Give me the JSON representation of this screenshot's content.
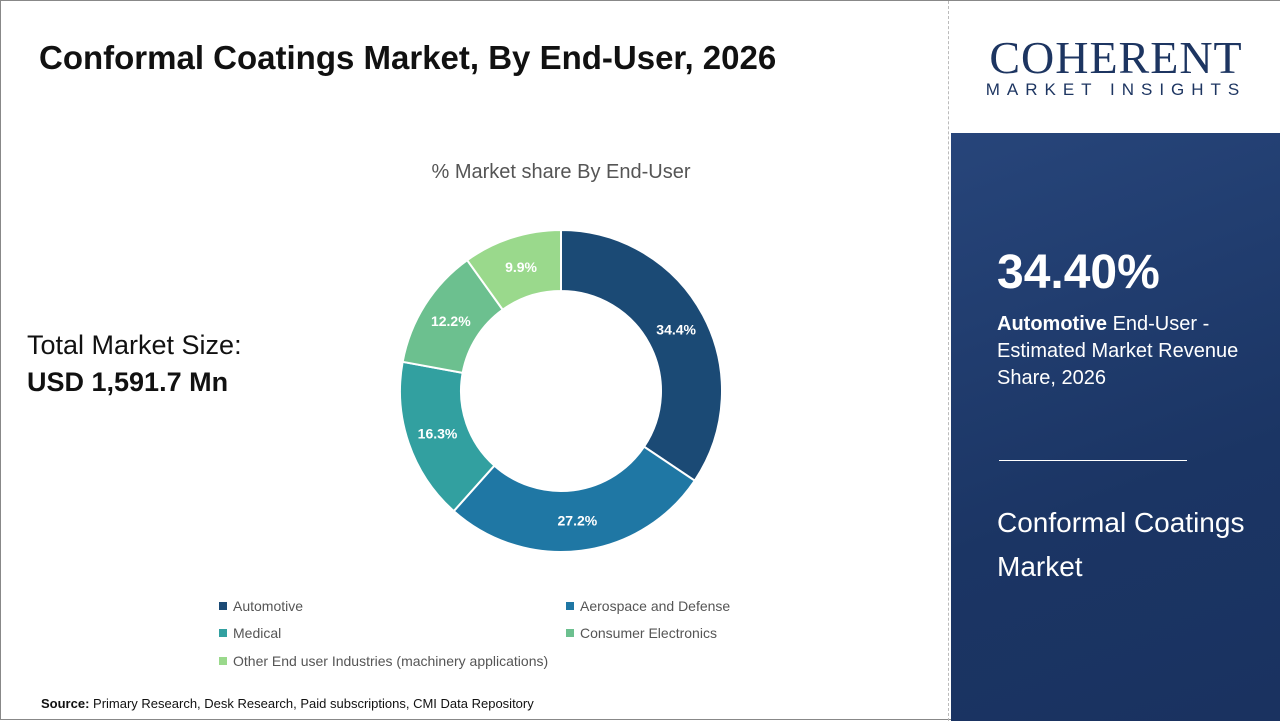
{
  "title": "Conformal Coatings Market, By End-User, 2026",
  "total": {
    "label": "Total Market Size:",
    "value": "USD 1,591.7 Mn"
  },
  "source": {
    "label": "Source:",
    "text": "Primary Research, Desk Research, Paid subscriptions, CMI Data Repository"
  },
  "logo": {
    "main": "COHERENT",
    "sub": "MARKET INSIGHTS"
  },
  "panel": {
    "pct": "34.40%",
    "highlight": "Automotive",
    "desc": "End-User - Estimated Market Revenue Share, 2026",
    "market": "Conformal Coatings Market"
  },
  "chart_data": {
    "type": "pie",
    "donut": true,
    "title": "% Market share By End-User",
    "categories": [
      "Automotive",
      "Aerospace and Defense",
      "Medical",
      "Consumer Electronics",
      "Other End user Industries (machinery applications)"
    ],
    "values": [
      34.4,
      27.2,
      16.3,
      12.2,
      9.9
    ],
    "labels": [
      "34.4%",
      "27.2%",
      "16.3%",
      "12.2%",
      "9.9%"
    ],
    "colors": [
      "#1b4a75",
      "#1f77a4",
      "#32a0a0",
      "#6cc08f",
      "#9ad98c"
    ],
    "legend": "bottom"
  }
}
